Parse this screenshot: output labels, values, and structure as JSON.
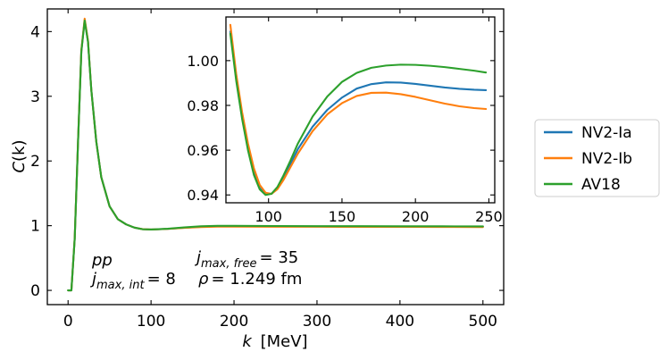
{
  "chart_data": [
    {
      "type": "line",
      "panel": "main",
      "xlabel_var": "k",
      "xlabel_unit": "[MeV]",
      "ylabel_var": "C",
      "ylabel_arg": "(k)",
      "xlim": [
        -25,
        525
      ],
      "ylim": [
        -0.22,
        4.35
      ],
      "xticks": [
        0,
        100,
        200,
        300,
        400,
        500
      ],
      "yticks": [
        0,
        1,
        2,
        3,
        4
      ],
      "series": [
        {
          "name": "NV2-Ia",
          "color": "#1f77b4",
          "points": [
            [
              0,
              0
            ],
            [
              4,
              0
            ],
            [
              8,
              0.8
            ],
            [
              12,
              2.3
            ],
            [
              16,
              3.7
            ],
            [
              20,
              4.18
            ],
            [
              24,
              3.85
            ],
            [
              28,
              3.1
            ],
            [
              34,
              2.3
            ],
            [
              40,
              1.75
            ],
            [
              50,
              1.3
            ],
            [
              60,
              1.1
            ],
            [
              70,
              1.02
            ],
            [
              80,
              0.97
            ],
            [
              90,
              0.945
            ],
            [
              100,
              0.94
            ],
            [
              120,
              0.95
            ],
            [
              140,
              0.968
            ],
            [
              160,
              0.982
            ],
            [
              180,
              0.99
            ],
            [
              200,
              0.991
            ],
            [
              250,
              0.989
            ],
            [
              300,
              0.988
            ],
            [
              350,
              0.987
            ],
            [
              400,
              0.987
            ],
            [
              450,
              0.987
            ],
            [
              500,
              0.987
            ]
          ]
        },
        {
          "name": "NV2-Ib",
          "color": "#ff7f0e",
          "points": [
            [
              0,
              0
            ],
            [
              4,
              0
            ],
            [
              8,
              0.81
            ],
            [
              12,
              2.31
            ],
            [
              16,
              3.71
            ],
            [
              20,
              4.2
            ],
            [
              24,
              3.86
            ],
            [
              28,
              3.1
            ],
            [
              34,
              2.3
            ],
            [
              40,
              1.75
            ],
            [
              50,
              1.3
            ],
            [
              60,
              1.1
            ],
            [
              70,
              1.02
            ],
            [
              80,
              0.97
            ],
            [
              90,
              0.946
            ],
            [
              100,
              0.941
            ],
            [
              120,
              0.95
            ],
            [
              140,
              0.966
            ],
            [
              160,
              0.978
            ],
            [
              180,
              0.985
            ],
            [
              200,
              0.986
            ],
            [
              250,
              0.984
            ],
            [
              300,
              0.983
            ],
            [
              350,
              0.982
            ],
            [
              400,
              0.981
            ],
            [
              450,
              0.98
            ],
            [
              500,
              0.979
            ]
          ]
        },
        {
          "name": "AV18",
          "color": "#2ca02c",
          "points": [
            [
              0,
              0
            ],
            [
              4,
              0
            ],
            [
              8,
              0.8
            ],
            [
              12,
              2.29
            ],
            [
              16,
              3.69
            ],
            [
              20,
              4.17
            ],
            [
              24,
              3.84
            ],
            [
              28,
              3.1
            ],
            [
              34,
              2.3
            ],
            [
              40,
              1.75
            ],
            [
              50,
              1.3
            ],
            [
              60,
              1.1
            ],
            [
              70,
              1.02
            ],
            [
              80,
              0.97
            ],
            [
              90,
              0.945
            ],
            [
              100,
              0.94
            ],
            [
              120,
              0.953
            ],
            [
              140,
              0.973
            ],
            [
              160,
              0.99
            ],
            [
              180,
              0.997
            ],
            [
              200,
              0.998
            ],
            [
              250,
              0.995
            ],
            [
              300,
              0.993
            ],
            [
              350,
              0.992
            ],
            [
              400,
              0.991
            ],
            [
              450,
              0.99
            ],
            [
              500,
              0.989
            ]
          ]
        }
      ]
    },
    {
      "type": "line",
      "panel": "inset",
      "xlim": [
        71,
        254
      ],
      "ylim": [
        0.9365,
        1.0195
      ],
      "xticks": [
        100,
        150,
        200,
        250
      ],
      "yticks": [
        "0.94",
        "0.96",
        "0.98",
        "1.00"
      ],
      "series": [
        {
          "name": "NV2-Ia",
          "color": "#1f77b4",
          "points": [
            [
              74,
              1.013
            ],
            [
              78,
              0.992
            ],
            [
              82,
              0.975
            ],
            [
              86,
              0.961
            ],
            [
              90,
              0.95
            ],
            [
              94,
              0.943
            ],
            [
              98,
              0.9405
            ],
            [
              102,
              0.9405
            ],
            [
              106,
              0.943
            ],
            [
              110,
              0.9475
            ],
            [
              115,
              0.954
            ],
            [
              120,
              0.9605
            ],
            [
              130,
              0.9705
            ],
            [
              140,
              0.978
            ],
            [
              150,
              0.9835
            ],
            [
              160,
              0.9875
            ],
            [
              170,
              0.9895
            ],
            [
              180,
              0.9903
            ],
            [
              190,
              0.9902
            ],
            [
              200,
              0.9896
            ],
            [
              210,
              0.9888
            ],
            [
              220,
              0.988
            ],
            [
              230,
              0.9874
            ],
            [
              240,
              0.987
            ],
            [
              248,
              0.9868
            ]
          ]
        },
        {
          "name": "NV2-Ib",
          "color": "#ff7f0e",
          "points": [
            [
              74,
              1.016
            ],
            [
              78,
              0.994
            ],
            [
              82,
              0.977
            ],
            [
              86,
              0.963
            ],
            [
              90,
              0.952
            ],
            [
              94,
              0.9445
            ],
            [
              98,
              0.941
            ],
            [
              102,
              0.9405
            ],
            [
              106,
              0.9425
            ],
            [
              110,
              0.9465
            ],
            [
              115,
              0.9525
            ],
            [
              120,
              0.9585
            ],
            [
              130,
              0.9685
            ],
            [
              140,
              0.976
            ],
            [
              150,
              0.981
            ],
            [
              160,
              0.9842
            ],
            [
              170,
              0.9856
            ],
            [
              180,
              0.9857
            ],
            [
              190,
              0.985
            ],
            [
              200,
              0.9838
            ],
            [
              210,
              0.9823
            ],
            [
              220,
              0.9808
            ],
            [
              230,
              0.9796
            ],
            [
              240,
              0.9788
            ],
            [
              248,
              0.9784
            ]
          ]
        },
        {
          "name": "AV18",
          "color": "#2ca02c",
          "points": [
            [
              74,
              1.012
            ],
            [
              78,
              0.991
            ],
            [
              82,
              0.974
            ],
            [
              86,
              0.96
            ],
            [
              90,
              0.949
            ],
            [
              94,
              0.9425
            ],
            [
              98,
              0.94
            ],
            [
              102,
              0.9405
            ],
            [
              106,
              0.9435
            ],
            [
              110,
              0.9485
            ],
            [
              115,
              0.9555
            ],
            [
              120,
              0.963
            ],
            [
              130,
              0.975
            ],
            [
              140,
              0.984
            ],
            [
              150,
              0.9905
            ],
            [
              160,
              0.9945
            ],
            [
              170,
              0.9968
            ],
            [
              180,
              0.9978
            ],
            [
              190,
              0.9982
            ],
            [
              200,
              0.9981
            ],
            [
              210,
              0.9977
            ],
            [
              220,
              0.9971
            ],
            [
              230,
              0.9963
            ],
            [
              240,
              0.9955
            ],
            [
              248,
              0.9947
            ]
          ]
        }
      ]
    }
  ],
  "annotation": {
    "system": "pp",
    "jmax_free_base": "j",
    "jmax_free_sub": "max, free",
    "jmax_free_value": "= 35",
    "jmax_int_base": "j",
    "jmax_int_sub": "max, int",
    "jmax_int_value": "= 8",
    "rho_symbol": "ρ",
    "rho_value": "= 1.249 fm"
  },
  "legend": {
    "position": "right",
    "entries": [
      {
        "label": "NV2-Ia",
        "color": "#1f77b4"
      },
      {
        "label": "NV2-Ib",
        "color": "#ff7f0e"
      },
      {
        "label": "AV18",
        "color": "#2ca02c"
      }
    ]
  }
}
